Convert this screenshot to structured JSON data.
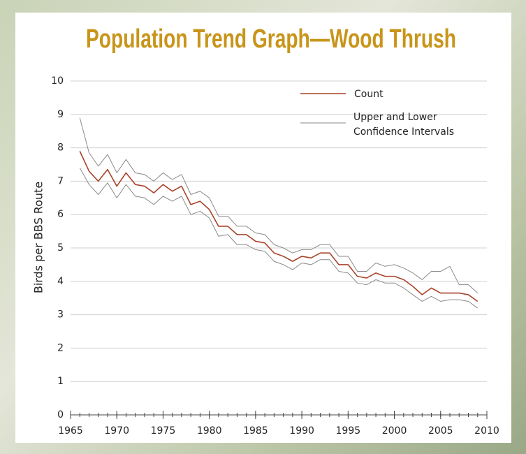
{
  "chart_data": {
    "type": "line",
    "title": "Population Trend Graph—Wood Thrush",
    "y_label": "Birds per BBS Route",
    "x": [
      1966,
      1967,
      1968,
      1969,
      1970,
      1971,
      1972,
      1973,
      1974,
      1975,
      1976,
      1977,
      1978,
      1979,
      1980,
      1981,
      1982,
      1983,
      1984,
      1985,
      1986,
      1987,
      1988,
      1989,
      1990,
      1991,
      1992,
      1993,
      1994,
      1995,
      1996,
      1997,
      1998,
      1999,
      2000,
      2001,
      2002,
      2003,
      2004,
      2005,
      2006,
      2007,
      2008,
      2009
    ],
    "series": [
      {
        "name": "Count",
        "color": "#a8432a",
        "values": [
          7.9,
          7.3,
          7.0,
          7.35,
          6.85,
          7.25,
          6.9,
          6.85,
          6.65,
          6.9,
          6.7,
          6.85,
          6.3,
          6.4,
          6.15,
          5.65,
          5.65,
          5.4,
          5.4,
          5.2,
          5.15,
          4.85,
          4.75,
          4.6,
          4.75,
          4.7,
          4.85,
          4.85,
          4.5,
          4.5,
          4.15,
          4.1,
          4.25,
          4.15,
          4.15,
          4.05,
          3.85,
          3.6,
          3.8,
          3.65,
          3.65,
          3.65,
          3.6,
          3.4
        ]
      },
      {
        "name": "Upper and Lower Confidence Intervals",
        "color": "#8a8a8a",
        "upper": [
          8.9,
          7.85,
          7.45,
          7.8,
          7.25,
          7.65,
          7.25,
          7.2,
          7.0,
          7.25,
          7.05,
          7.2,
          6.6,
          6.7,
          6.5,
          5.95,
          5.95,
          5.65,
          5.65,
          5.45,
          5.4,
          5.1,
          5.0,
          4.85,
          4.95,
          4.95,
          5.1,
          5.1,
          4.75,
          4.75,
          4.3,
          4.3,
          4.55,
          4.45,
          4.5,
          4.4,
          4.25,
          4.05,
          4.3,
          4.3,
          4.45,
          3.9,
          3.9,
          3.65
        ],
        "lower": [
          7.4,
          6.9,
          6.6,
          6.95,
          6.5,
          6.9,
          6.55,
          6.5,
          6.3,
          6.55,
          6.4,
          6.55,
          6.0,
          6.1,
          5.9,
          5.35,
          5.4,
          5.1,
          5.1,
          4.95,
          4.9,
          4.6,
          4.5,
          4.35,
          4.55,
          4.5,
          4.65,
          4.65,
          4.3,
          4.25,
          3.95,
          3.9,
          4.05,
          3.95,
          3.95,
          3.8,
          3.6,
          3.4,
          3.55,
          3.4,
          3.45,
          3.45,
          3.4,
          3.2
        ]
      }
    ],
    "xlim": [
      1965,
      2010
    ],
    "xticks": [
      1965,
      1970,
      1975,
      1980,
      1985,
      1990,
      1995,
      2000,
      2005,
      2010
    ],
    "ylim": [
      0,
      10
    ],
    "yticks": [
      0,
      1,
      2,
      3,
      4,
      5,
      6,
      7,
      8,
      9,
      10
    ],
    "grid": true,
    "legend": "top-right"
  }
}
